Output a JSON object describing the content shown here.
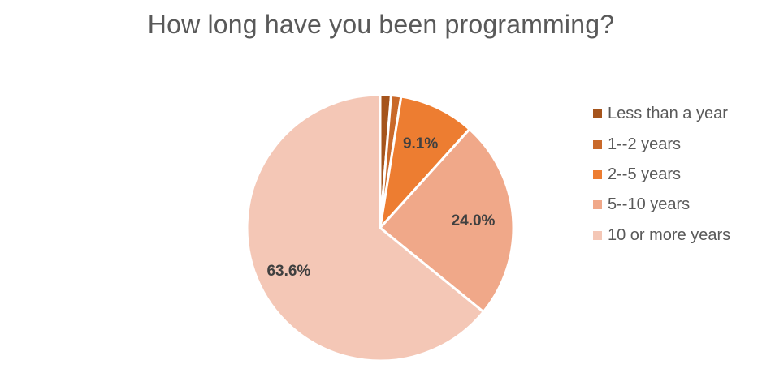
{
  "chart_data": {
    "type": "pie",
    "title": "How long have you been programming?",
    "categories": [
      "Less than a year",
      "1--2 years",
      "2--5 years",
      "5--10 years",
      "10 or more years"
    ],
    "values": [
      1.3,
      1.2,
      9.1,
      24.0,
      63.6
    ],
    "data_labels": [
      "",
      "",
      "9.1%",
      "24.0%",
      "63.6%"
    ],
    "colors": [
      "#A5541C",
      "#C9692A",
      "#ED7D31",
      "#F0A889",
      "#F4C7B6"
    ],
    "legend_position": "right",
    "start_angle": "12 o'clock",
    "direction": "clockwise"
  }
}
